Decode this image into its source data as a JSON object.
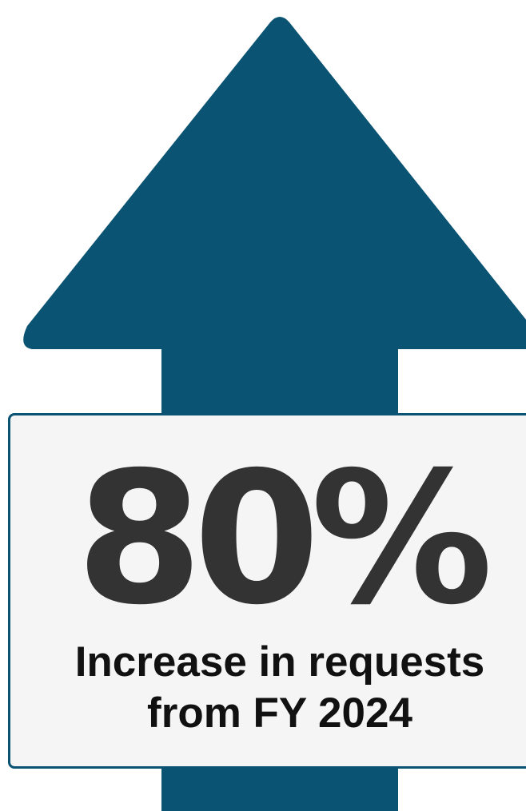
{
  "infographic": {
    "stat_value": "80%",
    "caption_line1": "Increase in requests",
    "caption_line2": "from FY 2024",
    "arrow_icon": "up-arrow-icon",
    "colors": {
      "arrow": "#0b5372",
      "box_background": "#f5f5f5",
      "box_border": "#0b5372",
      "stat_text": "#333333",
      "caption_text": "#111111"
    }
  }
}
